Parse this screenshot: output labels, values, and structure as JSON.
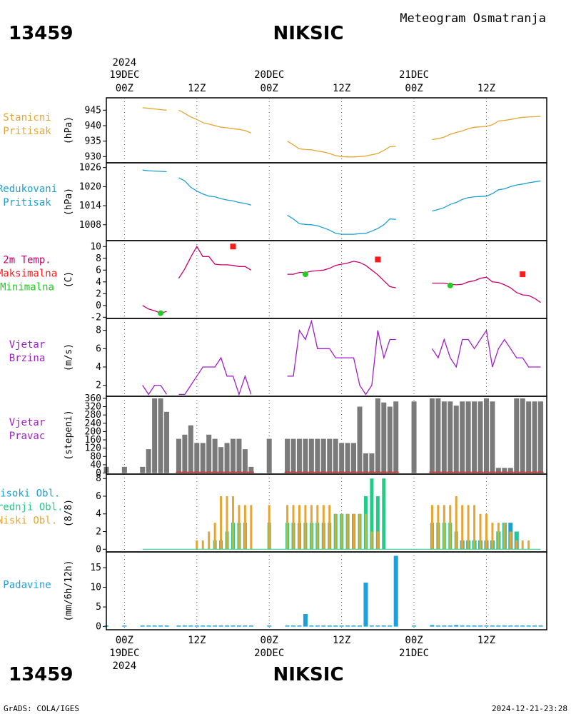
{
  "header": {
    "station_id": "13459",
    "station_name": "NIKSIC",
    "subtitle": "Meteogram Osmatranja"
  },
  "footer": {
    "station_id": "13459",
    "station_name": "NIKSIC",
    "credit": "GrADS: COLA/IGES",
    "timestamp": "2024-12-21-23:28"
  },
  "time_axis": {
    "year": "2024",
    "dates": [
      {
        "label": "19DEC",
        "hour_offset": 0
      },
      {
        "label": "20DEC",
        "hour_offset": 24
      },
      {
        "label": "21DEC",
        "hour_offset": 48
      }
    ],
    "hour_ticks": [
      {
        "label": "00Z",
        "h": 0
      },
      {
        "label": "12Z",
        "h": 12
      },
      {
        "label": "00Z",
        "h": 24
      },
      {
        "label": "12Z",
        "h": 36
      },
      {
        "label": "00Z",
        "h": 48
      },
      {
        "label": "12Z",
        "h": 60
      }
    ],
    "range_hours": [
      -3,
      70
    ]
  },
  "colors": {
    "pressure": "#e6a533",
    "mslp": "#1ea0d2",
    "temp": "#c8006e",
    "tmax": "#ff1a1a",
    "tmin": "#22cc22",
    "wind": "#a020c8",
    "wdir": "#7a7a7a",
    "wdir_base": "#cc2222",
    "high_cloud": "#1ea0d2",
    "mid_cloud": "#22cc88",
    "low_cloud": "#e6a533",
    "precip": "#1ea0dc"
  },
  "chart_data": [
    {
      "type": "line",
      "id": "station_pressure",
      "panel_label": [
        "Stanicni",
        "Pritisak"
      ],
      "ylabel": "(hPa)",
      "ylim": [
        928,
        949
      ],
      "yticks": [
        930,
        935,
        940,
        945
      ],
      "segments": [
        {
          "x": [
            3,
            4,
            5,
            6,
            7
          ],
          "y": [
            945.8,
            945.6,
            945.4,
            945.2,
            945.0
          ]
        },
        {
          "x": [
            9,
            10,
            11,
            12,
            13,
            14,
            15,
            16,
            17,
            18,
            19,
            20,
            21
          ],
          "y": [
            945.0,
            944.0,
            942.8,
            942.0,
            941.0,
            940.5,
            940.0,
            939.5,
            939.3,
            939.0,
            938.8,
            938.4,
            937.6
          ]
        },
        {
          "x": [
            27,
            28,
            29,
            30,
            31,
            32,
            33,
            34,
            35,
            36,
            37,
            38,
            39,
            40,
            41,
            42,
            43,
            44,
            45
          ],
          "y": [
            935.0,
            933.8,
            932.5,
            932.3,
            932.2,
            931.8,
            931.5,
            931.0,
            930.3,
            930.0,
            929.9,
            929.9,
            930.0,
            930.2,
            930.6,
            931.0,
            932.0,
            933.2,
            933.3
          ]
        },
        {
          "x": [
            51,
            52,
            53,
            54,
            55,
            56,
            57,
            58,
            59,
            60,
            61,
            62,
            63,
            64,
            65,
            66,
            67,
            68,
            69
          ],
          "y": [
            935.5,
            935.8,
            936.3,
            937.2,
            937.8,
            938.3,
            939.0,
            939.5,
            939.6,
            939.8,
            940.3,
            941.5,
            941.7,
            942.0,
            942.4,
            942.7,
            942.8,
            942.9,
            943.0
          ]
        }
      ]
    },
    {
      "type": "line",
      "id": "reduced_pressure",
      "panel_label": [
        "Redukovani",
        "Pritisak"
      ],
      "ylabel": "(hPa)",
      "ylim": [
        1003,
        1027.5
      ],
      "yticks": [
        1008,
        1014,
        1020,
        1026
      ],
      "segments": [
        {
          "x": [
            3,
            4,
            5,
            6,
            7
          ],
          "y": [
            1025.2,
            1025.0,
            1024.9,
            1024.8,
            1024.7
          ]
        },
        {
          "x": [
            9,
            10,
            11,
            12,
            13,
            14,
            15,
            16,
            17,
            18,
            19,
            20,
            21
          ],
          "y": [
            1022.8,
            1021.8,
            1019.8,
            1018.6,
            1017.7,
            1017.0,
            1016.8,
            1016.2,
            1015.8,
            1015.5,
            1015.0,
            1014.7,
            1014.2
          ]
        },
        {
          "x": [
            27,
            28,
            29,
            30,
            31,
            32,
            33,
            34,
            35,
            36,
            37,
            38,
            39,
            40,
            41,
            42,
            43,
            44,
            45
          ],
          "y": [
            1011.0,
            1009.8,
            1008.3,
            1008.1,
            1008.0,
            1007.7,
            1007.0,
            1006.3,
            1005.3,
            1005.0,
            1005.0,
            1005.0,
            1005.2,
            1005.3,
            1006.0,
            1006.8,
            1008.0,
            1009.8,
            1009.7
          ]
        },
        {
          "x": [
            51,
            52,
            53,
            54,
            55,
            56,
            57,
            58,
            59,
            60,
            61,
            62,
            63,
            64,
            65,
            66,
            67,
            68,
            69
          ],
          "y": [
            1012.3,
            1012.8,
            1013.4,
            1014.4,
            1015.0,
            1016.0,
            1016.5,
            1016.8,
            1016.9,
            1017.0,
            1017.8,
            1019.0,
            1019.3,
            1020.0,
            1020.5,
            1020.8,
            1021.2,
            1021.5,
            1021.8
          ]
        }
      ]
    },
    {
      "type": "line",
      "id": "temperature",
      "panel_label": [
        "2m Temp.",
        "Maksimalna",
        "Minimalna"
      ],
      "ylabel": "(C)",
      "ylim": [
        -2.2,
        11
      ],
      "yticks": [
        -2,
        0,
        2,
        4,
        6,
        8,
        10
      ],
      "segments": [
        {
          "x": [
            3,
            4,
            5,
            6,
            7
          ],
          "y": [
            0,
            -0.6,
            -0.9,
            -1.3,
            -1.0
          ]
        },
        {
          "x": [
            9,
            10,
            11,
            12,
            13,
            14,
            15,
            16,
            17,
            18,
            19,
            20,
            21
          ],
          "y": [
            4.6,
            6.2,
            8.2,
            10.0,
            8.3,
            8.3,
            7.0,
            6.9,
            6.9,
            6.8,
            6.6,
            6.6,
            6.0
          ]
        },
        {
          "x": [
            27,
            28,
            29,
            30,
            31,
            32,
            33,
            34,
            35,
            36,
            37,
            38,
            39,
            40,
            41,
            42,
            43,
            44,
            45
          ],
          "y": [
            5.3,
            5.3,
            5.6,
            5.6,
            5.8,
            5.9,
            6.0,
            6.3,
            6.8,
            7.0,
            7.2,
            7.5,
            7.3,
            6.8,
            6.0,
            5.2,
            4.2,
            3.2,
            3.0
          ]
        },
        {
          "x": [
            51,
            52,
            53,
            54,
            55,
            56,
            57,
            58,
            59,
            60,
            61,
            62,
            63,
            64,
            65,
            66,
            67,
            68,
            69
          ],
          "y": [
            3.8,
            3.8,
            3.8,
            3.6,
            3.5,
            3.6,
            4.0,
            4.2,
            4.6,
            4.8,
            4.0,
            3.9,
            3.5,
            3.0,
            2.2,
            1.8,
            1.7,
            1.2,
            0.5
          ]
        }
      ],
      "tmax": [
        {
          "x": 18,
          "y": 10.0
        },
        {
          "x": 42,
          "y": 7.8
        },
        {
          "x": 66,
          "y": 5.3
        }
      ],
      "tmin": [
        {
          "x": 6,
          "y": -1.3
        },
        {
          "x": 30,
          "y": 5.3
        },
        {
          "x": 54,
          "y": 3.4
        }
      ]
    },
    {
      "type": "line",
      "id": "wind_speed",
      "panel_label": [
        "Vjetar",
        "Brzina"
      ],
      "ylabel": "(m/s)",
      "ylim": [
        0.8,
        9.3
      ],
      "yticks": [
        2,
        4,
        6,
        8
      ],
      "segments": [
        {
          "x": [
            3,
            4,
            5,
            6,
            7
          ],
          "y": [
            2,
            1,
            2,
            2,
            1
          ]
        },
        {
          "x": [
            9,
            10,
            11,
            12,
            13,
            14,
            15,
            16,
            17,
            18,
            19,
            20,
            21
          ],
          "y": [
            1,
            1,
            2,
            3,
            4,
            4,
            4,
            5,
            3,
            3,
            1,
            3,
            1
          ]
        },
        {
          "x": [
            27,
            28,
            29,
            30,
            31,
            32,
            33,
            34,
            35,
            36,
            37,
            38,
            39,
            40,
            41,
            42,
            43,
            44,
            45
          ],
          "y": [
            3,
            3,
            8,
            7,
            9,
            6,
            6,
            6,
            5,
            5,
            5,
            5,
            2,
            1,
            2,
            8,
            5,
            7,
            7
          ]
        },
        {
          "x": [
            51,
            52,
            53,
            54,
            55,
            56,
            57,
            58,
            59,
            60,
            61,
            62,
            63,
            64,
            65,
            66,
            67,
            68,
            69
          ],
          "y": [
            6,
            5,
            7,
            5,
            4,
            7,
            7,
            6,
            7,
            8,
            4,
            6,
            7,
            6,
            5,
            5,
            4,
            4,
            4
          ]
        }
      ]
    },
    {
      "type": "bar",
      "id": "wind_direction",
      "panel_label": [
        "Vjetar",
        "Pravac"
      ],
      "ylabel": "(stepeni)",
      "ylim": [
        -5,
        370
      ],
      "yticks": [
        0,
        40,
        80,
        120,
        160,
        200,
        240,
        280,
        320,
        360
      ],
      "x": [
        -3,
        0,
        3,
        4,
        5,
        6,
        7,
        9,
        10,
        11,
        12,
        13,
        14,
        15,
        16,
        17,
        18,
        19,
        20,
        21,
        24,
        27,
        28,
        29,
        30,
        31,
        32,
        33,
        34,
        35,
        36,
        37,
        38,
        39,
        40,
        41,
        42,
        43,
        44,
        45,
        48,
        51,
        52,
        53,
        54,
        55,
        56,
        57,
        58,
        59,
        60,
        61,
        62,
        63,
        64,
        65,
        66,
        67,
        68,
        69
      ],
      "values": [
        30,
        30,
        30,
        115,
        360,
        360,
        295,
        165,
        185,
        230,
        145,
        145,
        185,
        165,
        125,
        145,
        165,
        165,
        115,
        30,
        165,
        165,
        165,
        165,
        165,
        165,
        165,
        165,
        165,
        165,
        145,
        145,
        145,
        320,
        95,
        95,
        360,
        340,
        320,
        345,
        345,
        360,
        360,
        345,
        345,
        325,
        345,
        345,
        345,
        345,
        360,
        345,
        25,
        25,
        25,
        360,
        360,
        345,
        345,
        345
      ]
    },
    {
      "type": "bar",
      "id": "cloud_cover",
      "panel_label": [
        "Visoki Obl.",
        "Srednji Obl.",
        "Niski Obl."
      ],
      "ylabel": "(8/8)",
      "ylim": [
        -0.3,
        8.5
      ],
      "yticks": [
        0,
        2,
        4,
        6,
        8
      ],
      "x": [
        -3,
        0,
        3,
        4,
        5,
        6,
        7,
        9,
        10,
        11,
        12,
        13,
        14,
        15,
        16,
        17,
        18,
        19,
        20,
        21,
        24,
        27,
        28,
        29,
        30,
        31,
        32,
        33,
        34,
        35,
        36,
        37,
        38,
        39,
        40,
        41,
        42,
        43,
        44,
        45,
        48,
        51,
        52,
        53,
        54,
        55,
        56,
        57,
        58,
        59,
        60,
        61,
        62,
        63,
        64,
        65,
        66,
        67,
        68,
        69
      ],
      "series": [
        {
          "name": "Visoki Obl.",
          "values": [
            0,
            0,
            0,
            0,
            0,
            0,
            0,
            0,
            0,
            0,
            0,
            0,
            0,
            0,
            0,
            0,
            0,
            0,
            0,
            0,
            0,
            0,
            0,
            0,
            0,
            0,
            0,
            0,
            0,
            0,
            0,
            0,
            0,
            0,
            0,
            0,
            0,
            0,
            0,
            0,
            0,
            0,
            0,
            0,
            0,
            0,
            1,
            1,
            1,
            1,
            1,
            1,
            2,
            3,
            3,
            2,
            0,
            0,
            0,
            0
          ]
        },
        {
          "name": "Srednji Obl.",
          "values": [
            0,
            0,
            0,
            0,
            0,
            0,
            0,
            0,
            0,
            0,
            0,
            0,
            0,
            1,
            1,
            2,
            3,
            3,
            3,
            0,
            3,
            3,
            3,
            3,
            3,
            3,
            3,
            3,
            3,
            4,
            4,
            4,
            4,
            4,
            6,
            8,
            6,
            8,
            0,
            0,
            0,
            3,
            3,
            3,
            3,
            2,
            1,
            1,
            1,
            1,
            1,
            1,
            2,
            3,
            2,
            2,
            0,
            0,
            0,
            0
          ]
        },
        {
          "name": "Niski Obl.",
          "values": [
            0,
            0,
            0,
            0,
            0,
            0,
            0,
            0,
            0,
            0,
            1,
            1,
            2,
            3,
            6,
            6,
            6,
            5,
            5,
            5,
            5,
            5,
            5,
            5,
            5,
            5,
            5,
            5,
            5,
            4,
            4,
            4,
            4,
            4,
            4,
            2,
            2,
            0,
            0,
            0,
            0,
            5,
            5,
            5,
            5,
            6,
            5,
            5,
            5,
            4,
            4,
            3,
            3,
            3,
            2,
            1,
            1,
            1,
            0,
            0
          ]
        }
      ]
    },
    {
      "type": "bar",
      "id": "precipitation",
      "panel_label": [
        "Padavine"
      ],
      "ylabel": "(mm/6h/12h)",
      "ylim": [
        -0.8,
        19
      ],
      "yticks": [
        0,
        5,
        10,
        15
      ],
      "x": [
        -3,
        0,
        3,
        4,
        5,
        6,
        7,
        9,
        10,
        11,
        12,
        13,
        14,
        15,
        16,
        17,
        18,
        19,
        20,
        21,
        24,
        27,
        28,
        29,
        30,
        31,
        32,
        33,
        34,
        35,
        36,
        37,
        38,
        39,
        40,
        41,
        42,
        43,
        44,
        45,
        48,
        51,
        52,
        53,
        54,
        55,
        56,
        57,
        58,
        59,
        60,
        61,
        62,
        63,
        64,
        65,
        66,
        67,
        68,
        69
      ],
      "values": [
        0,
        0,
        0,
        0,
        0,
        0,
        0,
        0,
        0,
        0,
        0,
        0,
        0,
        0,
        0,
        0,
        0,
        0,
        0,
        0,
        0,
        0,
        0,
        0,
        3.2,
        0,
        0,
        0,
        0,
        0,
        0,
        0,
        0,
        0,
        11.2,
        0,
        0,
        0,
        0,
        18.0,
        0,
        0.4,
        0,
        0,
        0,
        0.4,
        0,
        0,
        0,
        0,
        0,
        0,
        0,
        0,
        0,
        0,
        0,
        0,
        0,
        0
      ]
    }
  ]
}
